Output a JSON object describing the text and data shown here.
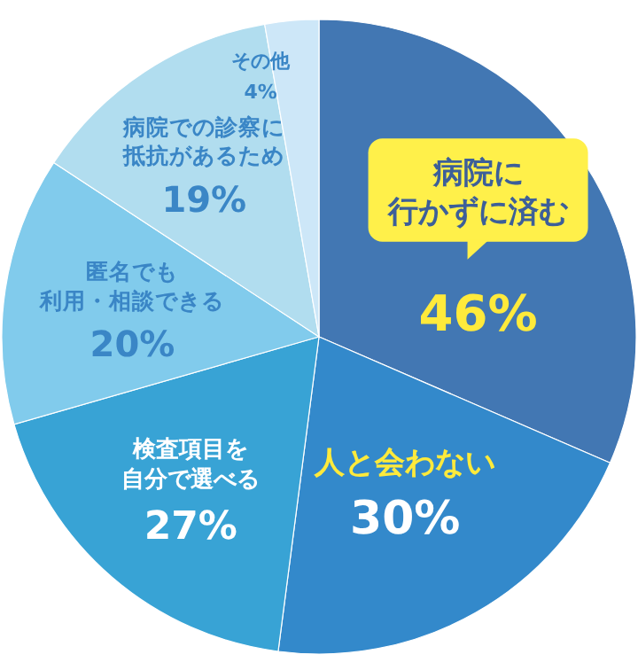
{
  "chart_data": {
    "type": "pie",
    "categories": [
      "病院に行かずに済む",
      "人と会わない",
      "検査項目を自分で選べる",
      "匿名でも利用・相談できる",
      "病院での診察に抵抗があるため",
      "その他"
    ],
    "values": [
      46,
      30,
      27,
      20,
      19,
      4
    ],
    "colors": [
      "#4277b3",
      "#3389cb",
      "#38a3d5",
      "#81cbec",
      "#b1ddef",
      "#cde7f8"
    ],
    "value_labels": [
      "46%",
      "30%",
      "27%",
      "20%",
      "19%",
      "4%"
    ],
    "legend": false
  }
}
